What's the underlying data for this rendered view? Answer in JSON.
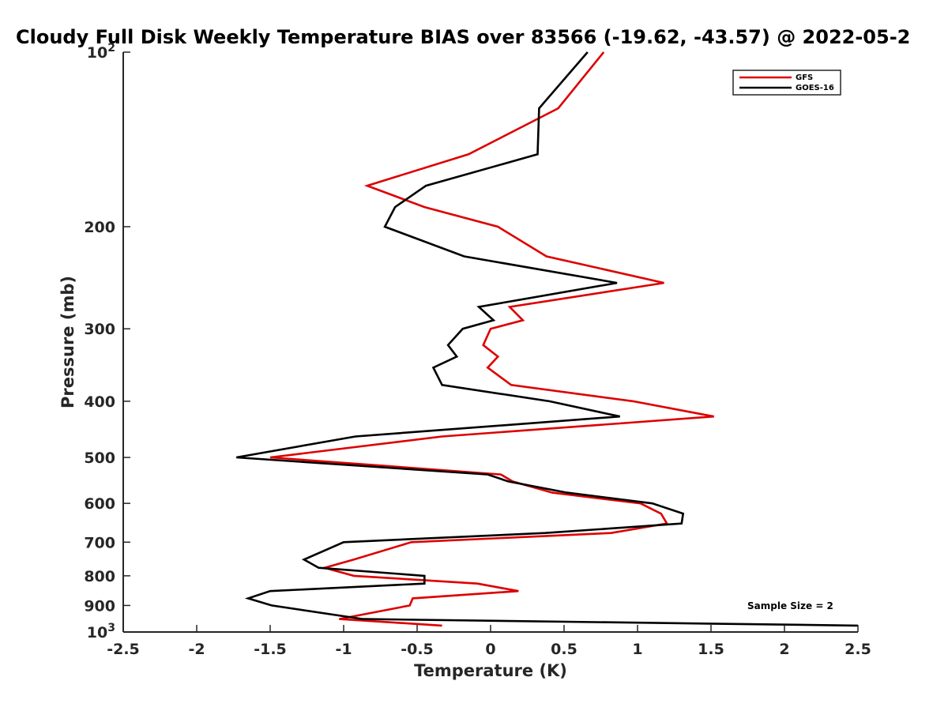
{
  "chart_data": {
    "type": "line",
    "title": "Cloudy Full Disk Weekly Temperature BIAS over 83566 (-19.62, -43.57) @ 2022-05-2",
    "xlabel": "Temperature (K)",
    "ylabel": "Pressure (mb)",
    "xlim": [
      -2.5,
      2.5
    ],
    "ylim": [
      100,
      1000
    ],
    "y_scale": "log",
    "y_direction": "reversed (pressure increases downward)",
    "x_ticks": [
      "-2.5",
      "-2",
      "-1.5",
      "-1",
      "-0.5",
      "0",
      "0.5",
      "1",
      "1.5",
      "2",
      "2.5"
    ],
    "y_ticks": [
      {
        "value": 100,
        "base": "10",
        "exp": "2"
      },
      {
        "value": 200,
        "label": "200"
      },
      {
        "value": 300,
        "label": "300"
      },
      {
        "value": 400,
        "label": "400"
      },
      {
        "value": 500,
        "label": "500"
      },
      {
        "value": 600,
        "label": "600"
      },
      {
        "value": 700,
        "label": "700"
      },
      {
        "value": 800,
        "label": "800"
      },
      {
        "value": 900,
        "label": "900"
      },
      {
        "value": 1000,
        "base": "10",
        "exp": "3"
      }
    ],
    "grid": false,
    "legend_position": "top-right",
    "annotation": "Sample Size = 2",
    "series": [
      {
        "name": "GFS",
        "color": "#dd0000",
        "points": [
          {
            "x": 0.77,
            "y": 100
          },
          {
            "x": 0.46,
            "y": 125
          },
          {
            "x": -0.15,
            "y": 150
          },
          {
            "x": -0.84,
            "y": 170
          },
          {
            "x": -0.45,
            "y": 185
          },
          {
            "x": 0.05,
            "y": 200
          },
          {
            "x": 0.38,
            "y": 225
          },
          {
            "x": 1.18,
            "y": 250
          },
          {
            "x": 0.13,
            "y": 275
          },
          {
            "x": 0.22,
            "y": 290
          },
          {
            "x": 0.0,
            "y": 300
          },
          {
            "x": -0.05,
            "y": 320
          },
          {
            "x": 0.05,
            "y": 335
          },
          {
            "x": -0.02,
            "y": 350
          },
          {
            "x": 0.14,
            "y": 375
          },
          {
            "x": 0.97,
            "y": 400
          },
          {
            "x": 1.52,
            "y": 425
          },
          {
            "x": -0.33,
            "y": 460
          },
          {
            "x": -1.5,
            "y": 500
          },
          {
            "x": 0.07,
            "y": 535
          },
          {
            "x": 0.15,
            "y": 550
          },
          {
            "x": 0.42,
            "y": 575
          },
          {
            "x": 1.02,
            "y": 600
          },
          {
            "x": 1.16,
            "y": 625
          },
          {
            "x": 1.2,
            "y": 650
          },
          {
            "x": 0.82,
            "y": 675
          },
          {
            "x": -0.54,
            "y": 700
          },
          {
            "x": -0.93,
            "y": 750
          },
          {
            "x": -1.13,
            "y": 775
          },
          {
            "x": -0.93,
            "y": 800
          },
          {
            "x": -0.09,
            "y": 825
          },
          {
            "x": 0.19,
            "y": 850
          },
          {
            "x": -0.53,
            "y": 875
          },
          {
            "x": -0.55,
            "y": 900
          },
          {
            "x": -1.03,
            "y": 950
          },
          {
            "x": -0.33,
            "y": 975
          }
        ]
      },
      {
        "name": "GOES-16",
        "color": "#000000",
        "points": [
          {
            "x": 0.66,
            "y": 100
          },
          {
            "x": 0.33,
            "y": 125
          },
          {
            "x": 0.32,
            "y": 150
          },
          {
            "x": -0.44,
            "y": 170
          },
          {
            "x": -0.65,
            "y": 185
          },
          {
            "x": -0.72,
            "y": 200
          },
          {
            "x": -0.18,
            "y": 225
          },
          {
            "x": 0.86,
            "y": 250
          },
          {
            "x": -0.08,
            "y": 275
          },
          {
            "x": 0.02,
            "y": 290
          },
          {
            "x": -0.19,
            "y": 300
          },
          {
            "x": -0.29,
            "y": 320
          },
          {
            "x": -0.23,
            "y": 335
          },
          {
            "x": -0.39,
            "y": 350
          },
          {
            "x": -0.33,
            "y": 375
          },
          {
            "x": 0.4,
            "y": 400
          },
          {
            "x": 0.88,
            "y": 425
          },
          {
            "x": -0.92,
            "y": 460
          },
          {
            "x": -1.73,
            "y": 500
          },
          {
            "x": -0.02,
            "y": 535
          },
          {
            "x": 0.12,
            "y": 550
          },
          {
            "x": 0.52,
            "y": 575
          },
          {
            "x": 1.1,
            "y": 600
          },
          {
            "x": 1.31,
            "y": 625
          },
          {
            "x": 1.3,
            "y": 650
          },
          {
            "x": 0.37,
            "y": 675
          },
          {
            "x": -1.0,
            "y": 700
          },
          {
            "x": -1.27,
            "y": 750
          },
          {
            "x": -1.17,
            "y": 775
          },
          {
            "x": -0.45,
            "y": 800
          },
          {
            "x": -0.45,
            "y": 825
          },
          {
            "x": -1.5,
            "y": 850
          },
          {
            "x": -1.65,
            "y": 875
          },
          {
            "x": -1.49,
            "y": 900
          },
          {
            "x": -0.87,
            "y": 950
          },
          {
            "x": 2.5,
            "y": 975
          }
        ]
      }
    ]
  }
}
